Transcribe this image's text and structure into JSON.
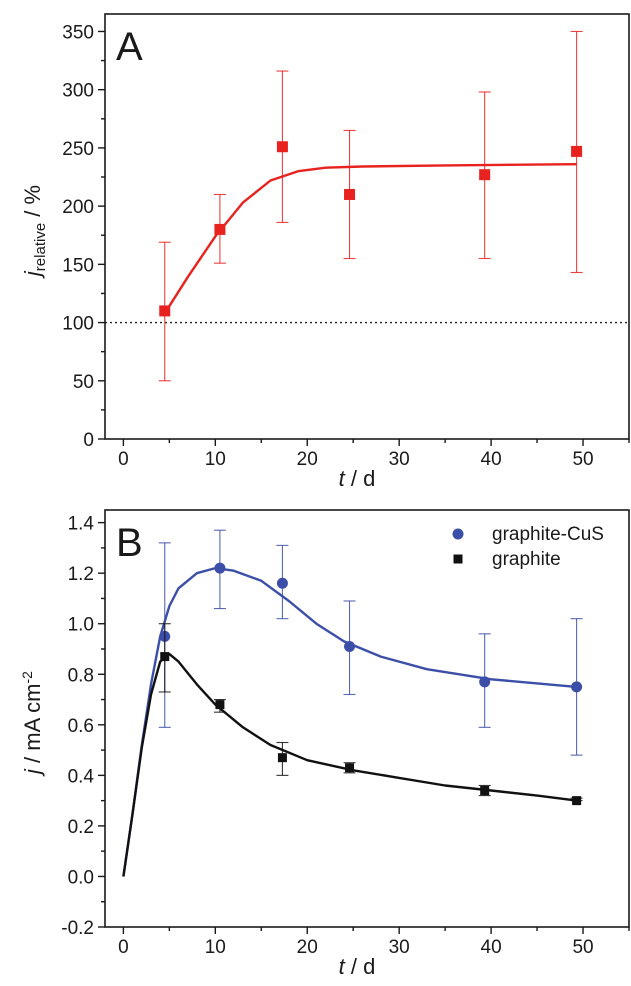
{
  "chart_data": [
    {
      "panel_label": "A",
      "type": "scatter",
      "xlabel_italic": "t",
      "xlabel_rest": " / d",
      "ylabel_main": "j",
      "ylabel_sub": "relative",
      "ylabel_unit": " / %",
      "xlim": [
        -2,
        55
      ],
      "ylim": [
        0,
        365
      ],
      "xticks": [
        0,
        10,
        20,
        30,
        40,
        50
      ],
      "yticks": [
        0,
        50,
        100,
        150,
        200,
        250,
        300,
        350
      ],
      "grid": false,
      "reference_line": {
        "y": 100,
        "style": "dotted"
      },
      "series": [
        {
          "marker": "square",
          "color": "#e8221f",
          "points": [
            {
              "x": 4.5,
              "y": 110,
              "err_low": 50,
              "err_high": 169
            },
            {
              "x": 10.5,
              "y": 180,
              "err_low": 151,
              "err_high": 210
            },
            {
              "x": 17.3,
              "y": 251,
              "err_low": 186,
              "err_high": 316
            },
            {
              "x": 24.6,
              "y": 210,
              "err_low": 155,
              "err_high": 265
            },
            {
              "x": 39.3,
              "y": 227,
              "err_low": 155,
              "err_high": 298
            },
            {
              "x": 49.3,
              "y": 247,
              "err_low": 143,
              "err_high": 350
            }
          ],
          "fit": [
            [
              4.5,
              108
            ],
            [
              7,
              139
            ],
            [
              10,
              174
            ],
            [
              13,
              203
            ],
            [
              16,
              222
            ],
            [
              19,
              230
            ],
            [
              22,
              233
            ],
            [
              26,
              234
            ],
            [
              35,
              235
            ],
            [
              49.3,
              236
            ]
          ]
        }
      ]
    },
    {
      "panel_label": "B",
      "type": "scatter",
      "xlabel_italic": "t",
      "xlabel_rest": " / d",
      "ylabel_main": "j",
      "ylabel_unit": " / mA cm",
      "ylabel_sup": "-2",
      "xlim": [
        -2,
        55
      ],
      "ylim": [
        -0.2,
        1.45
      ],
      "xticks": [
        0,
        10,
        20,
        30,
        40,
        50
      ],
      "yticks": [
        -0.2,
        0.0,
        0.2,
        0.4,
        0.6,
        0.8,
        1.0,
        1.2,
        1.4
      ],
      "grid": false,
      "legend_position": "top-right",
      "series": [
        {
          "name": "graphite-CuS",
          "marker": "circle",
          "color": "#3c4fa8",
          "points": [
            {
              "x": 4.5,
              "y": 0.95,
              "err_low": 0.59,
              "err_high": 1.32
            },
            {
              "x": 10.5,
              "y": 1.22,
              "err_low": 1.06,
              "err_high": 1.37
            },
            {
              "x": 17.3,
              "y": 1.16,
              "err_low": 1.02,
              "err_high": 1.31
            },
            {
              "x": 24.6,
              "y": 0.91,
              "err_low": 0.72,
              "err_high": 1.09
            },
            {
              "x": 39.3,
              "y": 0.77,
              "err_low": 0.59,
              "err_high": 0.96
            },
            {
              "x": 49.3,
              "y": 0.75,
              "err_low": 0.48,
              "err_high": 1.02
            }
          ],
          "fit": [
            [
              0,
              0
            ],
            [
              1,
              0.25
            ],
            [
              2,
              0.52
            ],
            [
              3,
              0.76
            ],
            [
              4,
              0.95
            ],
            [
              5,
              1.07
            ],
            [
              6,
              1.14
            ],
            [
              8,
              1.2
            ],
            [
              10,
              1.22
            ],
            [
              12,
              1.21
            ],
            [
              15,
              1.17
            ],
            [
              18,
              1.09
            ],
            [
              21,
              1.0
            ],
            [
              24,
              0.93
            ],
            [
              28,
              0.87
            ],
            [
              33,
              0.82
            ],
            [
              40,
              0.78
            ],
            [
              49.3,
              0.75
            ]
          ]
        },
        {
          "name": "graphite",
          "marker": "square",
          "color": "#111111",
          "points": [
            {
              "x": 4.5,
              "y": 0.87,
              "err_low": 0.73,
              "err_high": 1.0
            },
            {
              "x": 10.5,
              "y": 0.68,
              "err_low": 0.65,
              "err_high": 0.7
            },
            {
              "x": 17.3,
              "y": 0.47,
              "err_low": 0.4,
              "err_high": 0.53
            },
            {
              "x": 24.6,
              "y": 0.43,
              "err_low": 0.41,
              "err_high": 0.45
            },
            {
              "x": 39.3,
              "y": 0.34,
              "err_low": 0.32,
              "err_high": 0.36
            },
            {
              "x": 49.3,
              "y": 0.3,
              "err_low": 0.3,
              "err_high": 0.31
            }
          ],
          "fit": [
            [
              0,
              0
            ],
            [
              1,
              0.25
            ],
            [
              2,
              0.51
            ],
            [
              3,
              0.72
            ],
            [
              4,
              0.85
            ],
            [
              5,
              0.88
            ],
            [
              6,
              0.85
            ],
            [
              8,
              0.76
            ],
            [
              10,
              0.68
            ],
            [
              13,
              0.59
            ],
            [
              16,
              0.52
            ],
            [
              20,
              0.46
            ],
            [
              25,
              0.42
            ],
            [
              30,
              0.39
            ],
            [
              35,
              0.36
            ],
            [
              40,
              0.34
            ],
            [
              45,
              0.32
            ],
            [
              49.3,
              0.3
            ]
          ]
        }
      ]
    }
  ]
}
